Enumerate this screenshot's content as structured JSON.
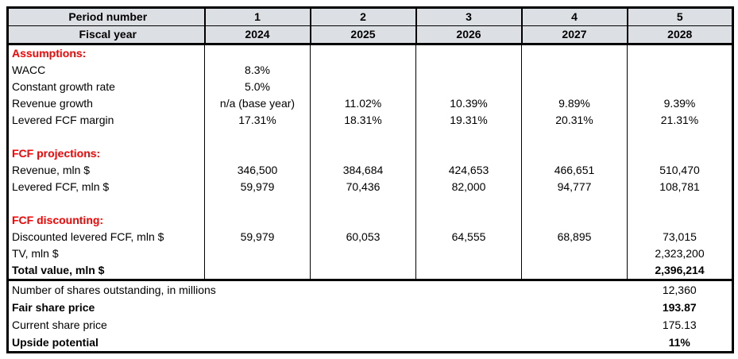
{
  "table": {
    "header": {
      "period_row_label": "Period number",
      "periods": [
        "1",
        "2",
        "3",
        "4",
        "5"
      ],
      "fiscal_row_label": "Fiscal year",
      "years": [
        "2024",
        "2025",
        "2026",
        "2027",
        "2028"
      ]
    },
    "sections": [
      {
        "title": "Assumptions:",
        "rows": [
          {
            "label": "WACC",
            "bold": false,
            "values": [
              "8.3%",
              "",
              "",
              "",
              ""
            ]
          },
          {
            "label": "Constant growth rate",
            "bold": false,
            "values": [
              "5.0%",
              "",
              "",
              "",
              ""
            ]
          },
          {
            "label": "Revenue growth",
            "bold": false,
            "values": [
              "n/a (base year)",
              "11.02%",
              "10.39%",
              "9.89%",
              "9.39%"
            ]
          },
          {
            "label": "Levered FCF margin",
            "bold": false,
            "values": [
              "17.31%",
              "18.31%",
              "19.31%",
              "20.31%",
              "21.31%"
            ]
          }
        ]
      },
      {
        "title": "FCF projections:",
        "rows": [
          {
            "label": "Revenue, mln $",
            "bold": false,
            "values": [
              "346,500",
              "384,684",
              "424,653",
              "466,651",
              "510,470"
            ]
          },
          {
            "label": "Levered FCF, mln $",
            "bold": false,
            "values": [
              "59,979",
              "70,436",
              "82,000",
              "94,777",
              "108,781"
            ]
          }
        ]
      },
      {
        "title": "FCF discounting:",
        "rows": [
          {
            "label": "Discounted levered FCF, mln $",
            "bold": false,
            "values": [
              "59,979",
              "60,053",
              "64,555",
              "68,895",
              "73,015"
            ]
          },
          {
            "label": "TV, mln $",
            "bold": false,
            "values": [
              "",
              "",
              "",
              "",
              "2,323,200"
            ]
          },
          {
            "label": "Total value, mln $",
            "bold": true,
            "values": [
              "",
              "",
              "",
              "",
              "2,396,214"
            ]
          }
        ]
      }
    ],
    "summary": [
      {
        "label": "Number of shares outstanding, in millions",
        "bold": false,
        "value": "12,360"
      },
      {
        "label": "Fair share price",
        "bold": true,
        "value": "193.87"
      },
      {
        "label": "Current share price",
        "bold": false,
        "value": "175.13"
      },
      {
        "label": "Upside potential",
        "bold": true,
        "value": "11%"
      }
    ],
    "colors": {
      "header_bg": "#dcdfe4",
      "section_title": "#ff0000",
      "border": "#000000"
    }
  }
}
